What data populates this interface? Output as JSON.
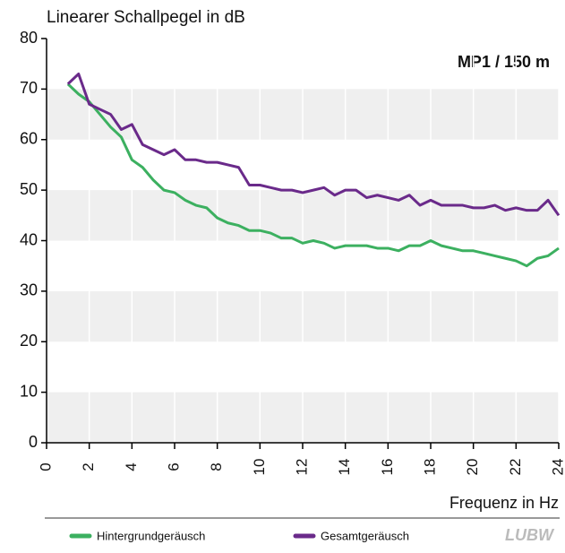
{
  "chart_data": {
    "type": "line",
    "title": "Linearer Schallpegel in dB",
    "annotation": "MP1 / 150 m",
    "x_label": "Frequenz in Hz",
    "logo": "LUBW",
    "x": [
      1,
      1.5,
      2,
      2.5,
      3,
      3.5,
      4,
      4.5,
      5,
      5.5,
      6,
      6.5,
      7,
      7.5,
      8,
      8.5,
      9,
      9.5,
      10,
      10.5,
      11,
      11.5,
      12,
      12.5,
      13,
      13.5,
      14,
      14.5,
      15,
      15.5,
      16,
      16.5,
      17,
      17.5,
      18,
      18.5,
      19,
      19.5,
      20,
      20.5,
      21,
      21.5,
      22,
      22.5,
      23,
      23.5,
      24
    ],
    "series": [
      {
        "name": "Hintergrundgeräusch",
        "color": "#3cb060",
        "values": [
          71,
          69,
          67.5,
          65,
          62.5,
          60.5,
          56,
          54.5,
          52,
          50,
          49.5,
          48,
          47,
          46.5,
          44.5,
          43.5,
          43,
          42,
          42,
          41.5,
          40.5,
          40.5,
          39.5,
          40,
          39.5,
          38.5,
          39,
          39,
          39,
          38.5,
          38.5,
          38,
          39,
          39,
          40,
          39,
          38.5,
          38,
          38,
          37.5,
          37,
          36.5,
          36,
          35,
          36.5,
          37,
          38.5
        ]
      },
      {
        "name": "Gesamtgeräusch",
        "color": "#6a2a8a",
        "values": [
          71,
          73,
          67,
          66,
          65,
          62,
          63,
          59,
          58,
          57,
          58,
          56,
          56,
          55.5,
          55.5,
          55,
          54.5,
          51,
          51,
          50.5,
          50,
          50,
          49.5,
          50,
          50.5,
          49,
          50,
          50,
          48.5,
          49,
          48.5,
          48,
          49,
          47,
          48,
          47,
          47,
          47,
          46.5,
          46.5,
          47,
          46,
          46.5,
          46,
          46,
          48,
          45
        ]
      }
    ],
    "xlim": [
      0,
      24
    ],
    "xticks": [
      0,
      2,
      4,
      6,
      8,
      10,
      12,
      14,
      16,
      18,
      20,
      22,
      24
    ],
    "ylim": [
      0,
      80
    ],
    "yticks": [
      0,
      10,
      20,
      30,
      40,
      50,
      60,
      70,
      80
    ],
    "grid": "bands"
  }
}
